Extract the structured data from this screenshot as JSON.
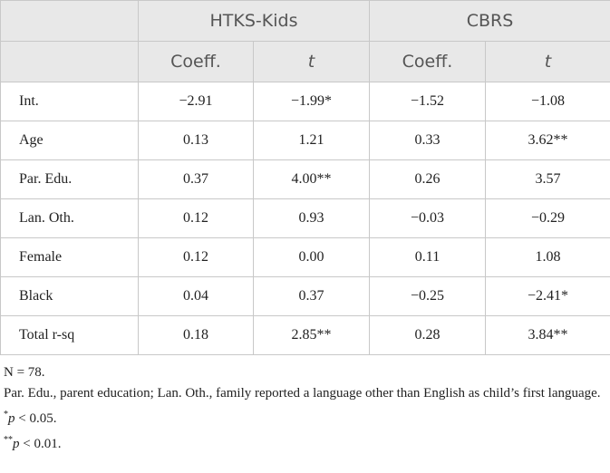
{
  "table": {
    "groups": [
      "HTKS-Kids",
      "CBRS"
    ],
    "subheaders": [
      "Coeff.",
      "t",
      "Coeff.",
      "t"
    ],
    "rows": [
      [
        "Int.",
        "−2.91",
        "−1.99*",
        "−1.52",
        "−1.08"
      ],
      [
        "Age",
        "0.13",
        "1.21",
        "0.33",
        "3.62**"
      ],
      [
        "Par. Edu.",
        "0.37",
        "4.00**",
        "0.26",
        "3.57"
      ],
      [
        "Lan. Oth.",
        "0.12",
        "0.93",
        "−0.03",
        "−0.29"
      ],
      [
        "Female",
        "0.12",
        "0.00",
        "0.11",
        "1.08"
      ],
      [
        "Black",
        "0.04",
        "0.37",
        "−0.25",
        "−2.41*"
      ],
      [
        "Total r-sq",
        "0.18",
        "2.85**",
        "0.28",
        "3.84**"
      ]
    ]
  },
  "notes": {
    "n": "N = 78.",
    "abbrev": "Par. Edu., parent education; Lan. Oth., family reported a language other than English as child’s first language.",
    "sig": [
      {
        "mark": "*",
        "var": "p",
        "text": " < 0.05."
      },
      {
        "mark": "**",
        "var": "p",
        "text": " < 0.01."
      }
    ]
  }
}
